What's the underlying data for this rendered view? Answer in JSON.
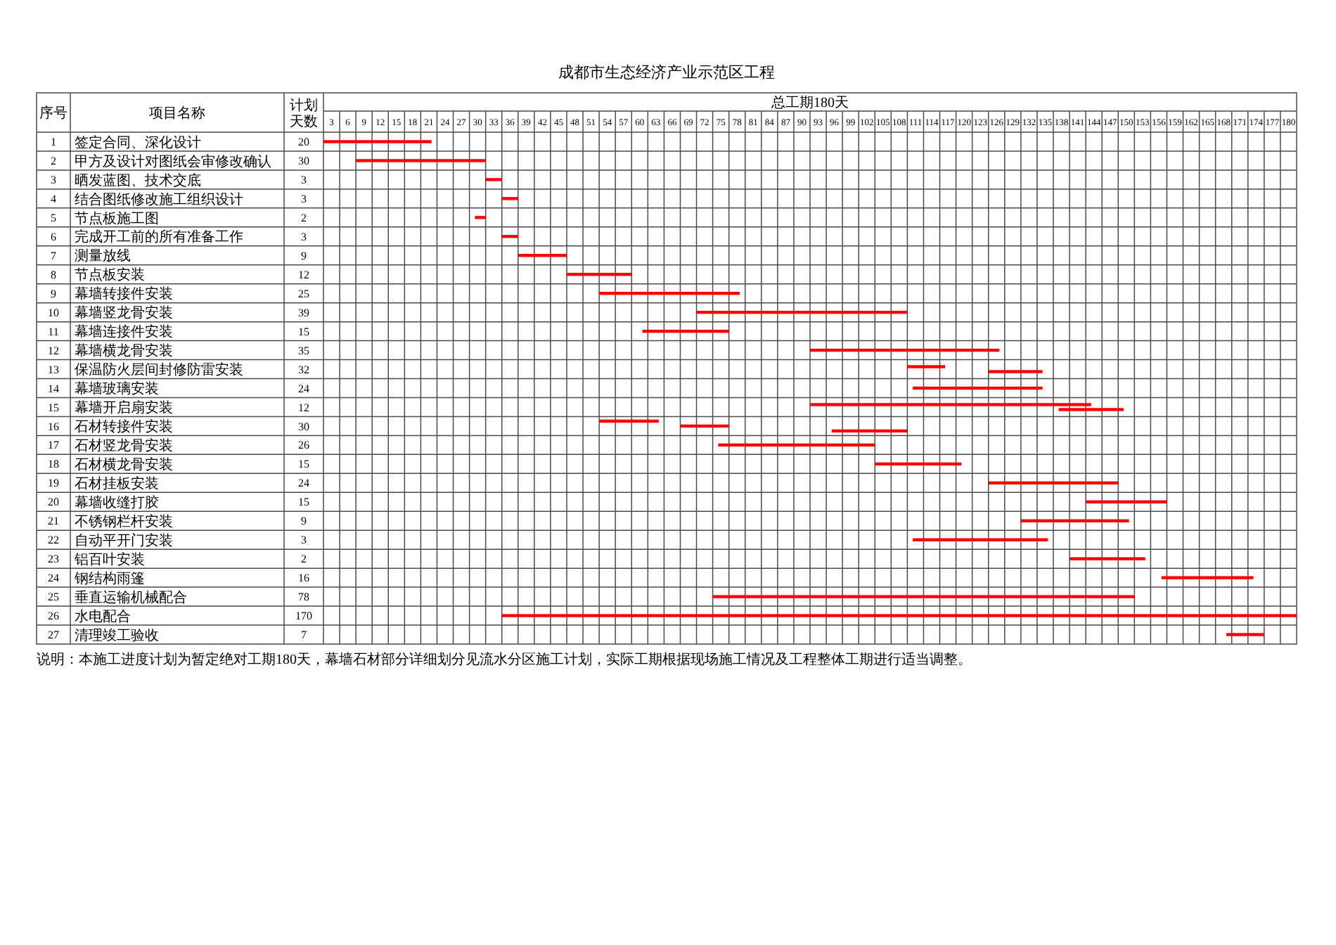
{
  "chart_data": {
    "type": "bar",
    "orientation": "horizontal",
    "title": "成都市生态经济产业示范区工程",
    "xlabel": "总工期180天",
    "ylabel": "项目名称",
    "y2label": "计划天数",
    "categories": [
      "签定合同、深化设计",
      "甲方及设计对图纸会审修改确认",
      "晒发蓝图、技术交底",
      "结合图纸修改施工组织设计",
      "节点板施工图",
      "完成开工前的所有准备工作",
      "测量放线",
      "节点板安装",
      "幕墙转接件安装",
      "幕墙竖龙骨安装",
      "幕墙连接件安装",
      "幕墙横龙骨安装",
      "保温防火层间封修防雷安装",
      "幕墙玻璃安装",
      "幕墙开启扇安装",
      "石材转接件安装",
      "石材竖龙骨安装",
      "石材横龙骨安装",
      "石材挂板安装",
      "幕墙收缝打胶",
      "不锈钢栏杆安装",
      "自动平开门安装",
      "铝百叶安装",
      "钢结构雨篷",
      "垂直运输机械配合",
      "水电配合",
      "清理竣工验收"
    ],
    "y2_categories": [
      "20",
      "30",
      "3",
      "3",
      "2",
      "3",
      "9",
      "12",
      "25",
      "39",
      "15",
      "35",
      "32",
      "24",
      "12",
      "30",
      "26",
      "15",
      "24",
      "15",
      "9",
      "3",
      "2",
      "16",
      "78",
      "170",
      "7"
    ],
    "xlim": [
      1.5,
      181.5
    ],
    "xticks": [
      3,
      6,
      9,
      12,
      15,
      18,
      21,
      24,
      27,
      30,
      33,
      36,
      39,
      42,
      45,
      48,
      51,
      54,
      57,
      60,
      63,
      66,
      69,
      72,
      75,
      78,
      81,
      84,
      87,
      90,
      93,
      96,
      99,
      102,
      105,
      108,
      111,
      114,
      117,
      120,
      123,
      126,
      129,
      132,
      135,
      138,
      141,
      144,
      147,
      150,
      153,
      156,
      159,
      162,
      165,
      168,
      171,
      174,
      177,
      180
    ],
    "grid": true,
    "series": [
      {
        "color": "#ff0000",
        "base": [
          1.5,
          7.5,
          31.5,
          34.5,
          29.5,
          34.5,
          37.5,
          46.5,
          52.5,
          70.5,
          60.5,
          91.5,
          109.5,
          110.5,
          91.5,
          52.5,
          74.5,
          103.5,
          124.5,
          142.5,
          130.5,
          110.5,
          139.5,
          156.5,
          73.5,
          34.5,
          168.5
        ],
        "values": [
          20,
          24,
          3,
          3,
          2,
          3,
          9,
          12,
          26,
          39,
          16,
          35,
          7,
          24,
          52,
          11,
          29,
          16,
          24,
          15,
          20,
          25,
          14,
          17,
          78,
          147,
          7
        ]
      },
      {
        "color": "#ff0000",
        "base": [
          null,
          null,
          null,
          null,
          null,
          null,
          null,
          null,
          null,
          null,
          null,
          null,
          124.5,
          null,
          137.5,
          67.5,
          null,
          null,
          null,
          null,
          null,
          null,
          null,
          null,
          null,
          null,
          null
        ],
        "values": [
          null,
          null,
          null,
          null,
          null,
          null,
          null,
          null,
          null,
          null,
          null,
          null,
          10,
          null,
          12,
          9,
          null,
          null,
          null,
          null,
          null,
          null,
          null,
          null,
          null,
          null,
          null
        ]
      },
      {
        "color": "#ff0000",
        "base": [
          null,
          null,
          null,
          null,
          null,
          null,
          null,
          null,
          null,
          null,
          null,
          null,
          null,
          null,
          null,
          95.5,
          null,
          null,
          null,
          null,
          null,
          null,
          null,
          null,
          null,
          null,
          null
        ],
        "values": [
          null,
          null,
          null,
          null,
          null,
          null,
          null,
          null,
          null,
          null,
          null,
          null,
          null,
          null,
          null,
          14,
          null,
          null,
          null,
          null,
          null,
          null,
          null,
          null,
          null,
          null,
          null
        ]
      }
    ],
    "annotations": [
      "序号",
      "1",
      "2",
      "3",
      "4",
      "5",
      "6",
      "7",
      "8",
      "9",
      "10",
      "11",
      "12",
      "13",
      "14",
      "15",
      "16",
      "17",
      "18",
      "19",
      "20",
      "21",
      "22",
      "23",
      "24",
      "25",
      "26",
      "27",
      "说明：本施工进度计划为暂定绝对工期180天，幕墙石材部分详细划分见流水分区施工计划，实际工期根据现场施工情况及工程整体工期进行适当调整。"
    ]
  }
}
